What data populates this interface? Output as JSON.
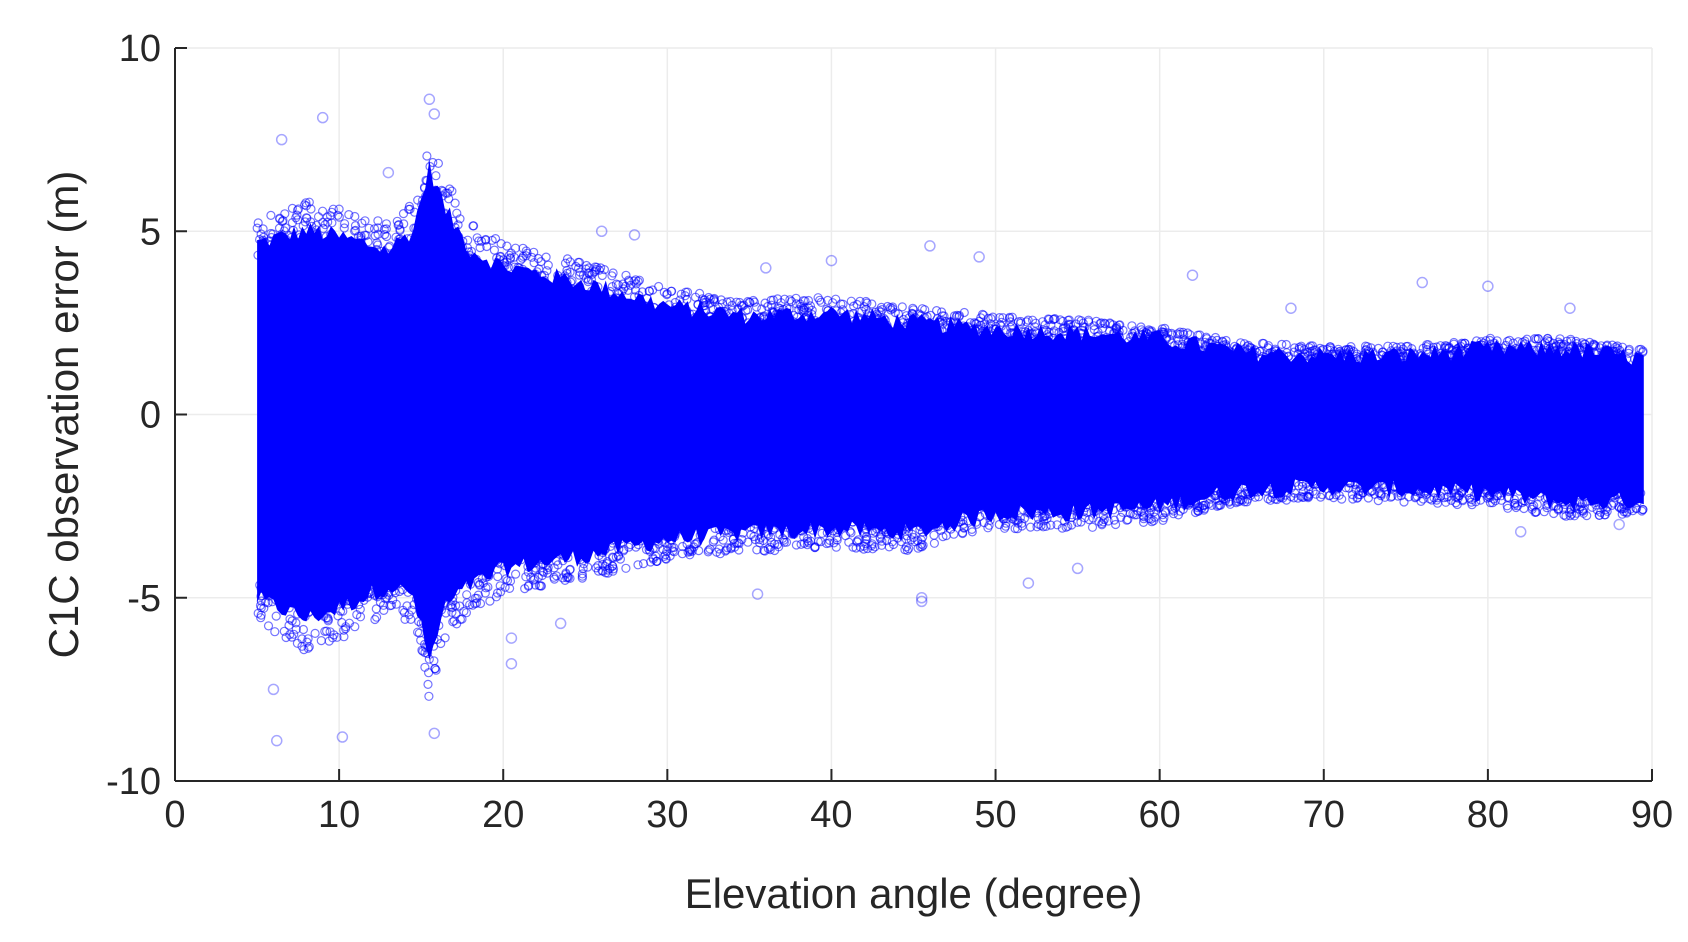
{
  "chart_data": {
    "type": "scatter",
    "title": "",
    "xlabel": "Elevation angle (degree)",
    "ylabel": "C1C observation error (m)",
    "xlim": [
      0,
      90
    ],
    "ylim": [
      -10,
      10
    ],
    "xticks": [
      0,
      10,
      20,
      30,
      40,
      50,
      60,
      70,
      80,
      90
    ],
    "yticks": [
      10,
      5,
      0,
      -5,
      -10
    ],
    "xtick_labels": [
      "0",
      "10",
      "20",
      "30",
      "40",
      "50",
      "60",
      "70",
      "80",
      "90"
    ],
    "ytick_labels": [
      "10",
      "5",
      "0",
      "-5",
      "-10"
    ],
    "grid": true,
    "legend": "none",
    "marker_color": "#0000ff",
    "series": [
      {
        "x_range": [
          5,
          89.5
        ],
        "envelope": {
          "x": [
            5,
            8,
            10,
            13,
            14.5,
            15.5,
            16.5,
            18,
            20,
            25,
            30,
            35,
            40,
            45,
            50,
            55,
            60,
            65,
            70,
            75,
            80,
            85,
            89.5
          ],
          "upper": [
            5.2,
            5.6,
            5.4,
            5.0,
            5.6,
            7.5,
            6.2,
            5.0,
            4.5,
            4.0,
            3.3,
            3.0,
            3.1,
            2.8,
            2.6,
            2.5,
            2.3,
            1.9,
            1.8,
            1.8,
            2.0,
            2.0,
            1.7
          ],
          "lower": [
            -5.6,
            -6.2,
            -5.9,
            -5.2,
            -5.5,
            -7.5,
            -5.8,
            -5.2,
            -4.7,
            -4.3,
            -3.8,
            -3.6,
            -3.5,
            -3.6,
            -3.0,
            -3.0,
            -2.8,
            -2.3,
            -2.2,
            -2.3,
            -2.4,
            -2.7,
            -2.6
          ]
        },
        "outliers": [
          [
            6.2,
            -8.9
          ],
          [
            10.2,
            -8.8
          ],
          [
            15.8,
            -8.7
          ],
          [
            15.5,
            8.6
          ],
          [
            9,
            8.1
          ],
          [
            15.8,
            8.2
          ],
          [
            13,
            6.6
          ],
          [
            6.5,
            7.5
          ],
          [
            26,
            5.0
          ],
          [
            28,
            4.9
          ],
          [
            46,
            4.6
          ],
          [
            49,
            4.3
          ],
          [
            62,
            3.8
          ],
          [
            76,
            3.6
          ],
          [
            80,
            3.5
          ],
          [
            45.5,
            -5.1
          ],
          [
            45.5,
            -5.0
          ],
          [
            35.5,
            -4.9
          ],
          [
            20.5,
            -6.8
          ],
          [
            20.5,
            -6.1
          ],
          [
            23.5,
            -5.7
          ],
          [
            52,
            -4.6
          ],
          [
            55,
            -4.2
          ],
          [
            82,
            -3.2
          ],
          [
            88,
            -3.0
          ],
          [
            36,
            4.0
          ],
          [
            40,
            4.2
          ],
          [
            68,
            2.9
          ],
          [
            85,
            2.9
          ],
          [
            6,
            -7.5
          ]
        ]
      }
    ]
  }
}
